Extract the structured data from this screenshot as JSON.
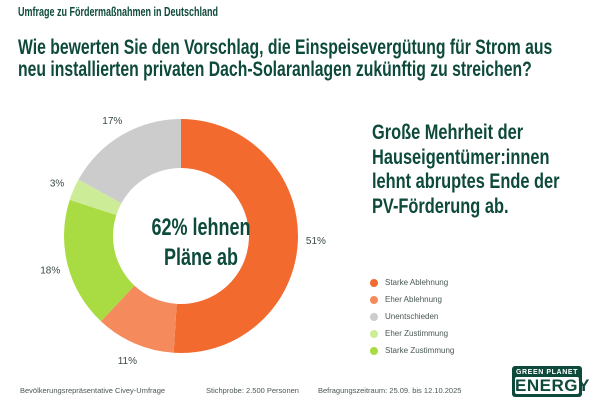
{
  "kicker": "Umfrage zu Fördermaßnahmen  in Deutschland",
  "title_lines": [
    "Wie bewerten Sie den Vorschlag, die Einspeisevergütung für Strom aus",
    "neu installierten privaten Dach-Solaranlagen zukünftig zu streichen?"
  ],
  "headline_lines": [
    "Große Mehrheit der",
    "Hauseigentümer:innen",
    "lehnt abruptes Ende der",
    "PV-Förderung ab."
  ],
  "center_lines": [
    "62% lehnen",
    "Pläne ab"
  ],
  "chart_data": {
    "type": "pie",
    "donut": true,
    "start": "top, clockwise",
    "categories": [
      "Starke Ablehnung",
      "Eher Ablehnung",
      "Starke Zustimmung",
      "Eher Zustimmung",
      "Unentschieden"
    ],
    "values": [
      51,
      11,
      18,
      3,
      17
    ],
    "data_labels": [
      "51%",
      "11%",
      "18%",
      "3%",
      "17%"
    ],
    "colors": [
      "#f26a2e",
      "#f58a5c",
      "#a9dc42",
      "#cdec98",
      "#cccccc"
    ],
    "legend_position": "right",
    "unit": "%"
  },
  "legend": [
    {
      "label": "Starke Ablehnung",
      "color": "#f26a2e"
    },
    {
      "label": "Eher Ablehnung",
      "color": "#f58a5c"
    },
    {
      "label": "Unentschieden",
      "color": "#cccccc"
    },
    {
      "label": "Eher Zustimmung",
      "color": "#cdec98"
    },
    {
      "label": "Starke Zustimmung",
      "color": "#a9dc42"
    }
  ],
  "footer": {
    "source": "Bevölkerungsrepräsentative Civey-Umfrage",
    "sample": "Stichprobe: 2.500 Personen",
    "period": "Befragungszeitraum: 25.09. bis 12.10.2025"
  },
  "logo": {
    "line1": "GREEN PLANET",
    "line2": "ENERGY"
  }
}
